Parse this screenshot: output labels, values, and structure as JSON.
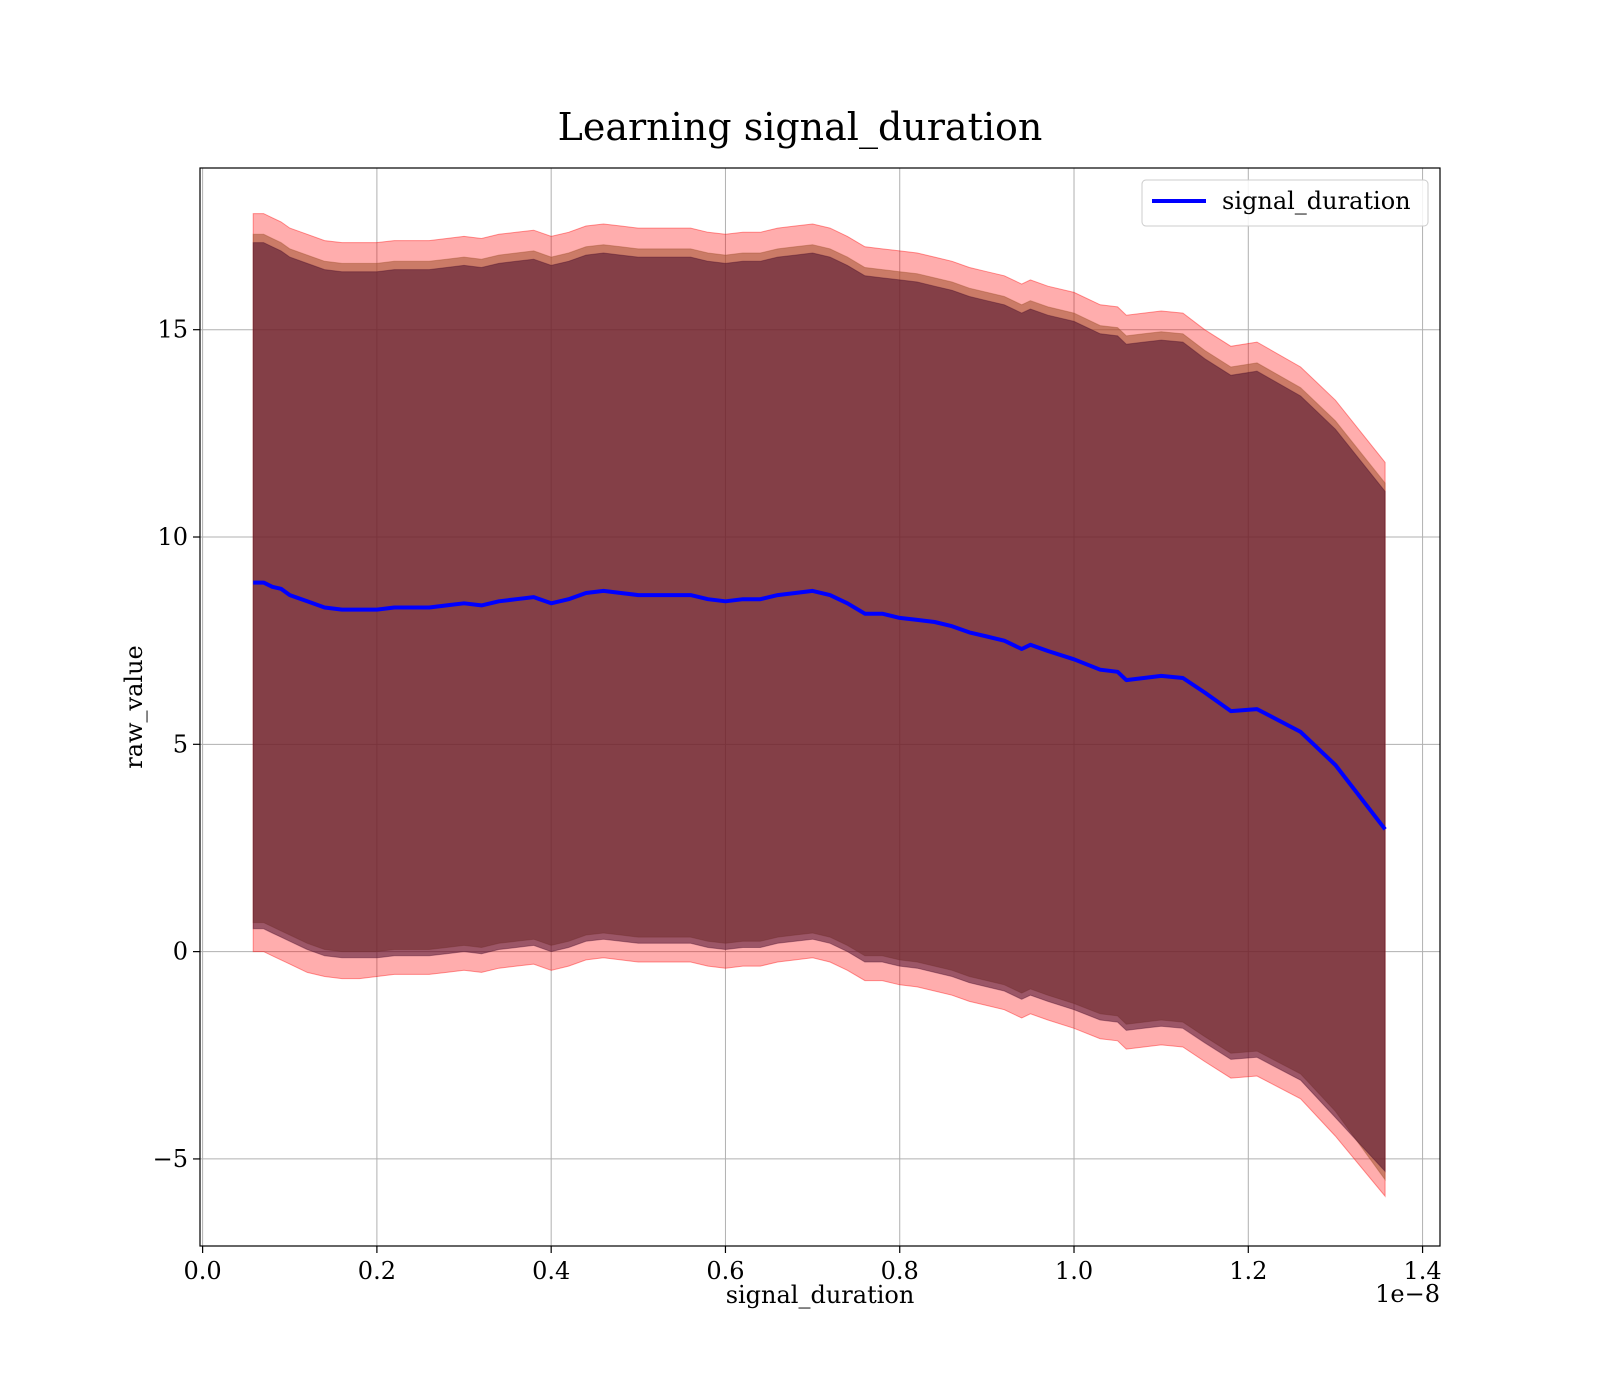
{
  "chart_data": {
    "type": "line",
    "title": "Learning signal_duration",
    "xlabel": "signal_duration",
    "ylabel": "raw_value",
    "x_offset_text": "1e−8",
    "xlim": [
      -3e-11,
      1.42e-08
    ],
    "ylim": [
      -7.1,
      18.9
    ],
    "x_ticks": [
      0.0,
      2e-09,
      4e-09,
      6e-09,
      8e-09,
      1e-08,
      1.2e-08,
      1.4e-08
    ],
    "x_tick_labels": [
      "0.0",
      "0.2",
      "0.4",
      "0.6",
      "0.8",
      "1.0",
      "1.2",
      "1.4"
    ],
    "y_ticks": [
      -5,
      0,
      5,
      10,
      15
    ],
    "y_tick_labels": [
      "−5",
      "0",
      "5",
      "10",
      "15"
    ],
    "grid": true,
    "legend": {
      "placement": "upper-right",
      "entries": [
        "signal_duration"
      ]
    },
    "colors": {
      "line": "#0000ff",
      "band_outer": "#ff0000",
      "band_middle": "#a0522d",
      "band_inner": "#4b0f2e",
      "grid": "#b0b0b0"
    },
    "x": [
      5.8e-10,
      7e-10,
      8e-10,
      9e-10,
      1e-09,
      1.2e-09,
      1.4e-09,
      1.6e-09,
      1.8e-09,
      2e-09,
      2.2e-09,
      2.4e-09,
      2.6e-09,
      2.8e-09,
      3e-09,
      3.2e-09,
      3.4e-09,
      3.6e-09,
      3.8e-09,
      4e-09,
      4.2e-09,
      4.4e-09,
      4.6e-09,
      4.8e-09,
      5e-09,
      5.2e-09,
      5.4e-09,
      5.6e-09,
      5.8e-09,
      6e-09,
      6.2e-09,
      6.4e-09,
      6.6e-09,
      6.8e-09,
      7e-09,
      7.2e-09,
      7.4e-09,
      7.6e-09,
      7.8e-09,
      8e-09,
      8.2e-09,
      8.4e-09,
      8.6e-09,
      8.8e-09,
      9e-09,
      9.2e-09,
      9.4e-09,
      9.5e-09,
      9.7e-09,
      1e-08,
      1.03e-08,
      1.05e-08,
      1.06e-08,
      1.08e-08,
      1.1e-08,
      1.125e-08,
      1.15e-08,
      1.18e-08,
      1.21e-08,
      1.26e-08,
      1.3e-08,
      1.357e-08
    ],
    "series": [
      {
        "name": "signal_duration",
        "values": [
          8.9,
          8.9,
          8.8,
          8.75,
          8.6,
          8.45,
          8.3,
          8.25,
          8.25,
          8.25,
          8.3,
          8.3,
          8.3,
          8.35,
          8.4,
          8.35,
          8.45,
          8.5,
          8.55,
          8.4,
          8.5,
          8.65,
          8.7,
          8.65,
          8.6,
          8.6,
          8.6,
          8.6,
          8.5,
          8.45,
          8.5,
          8.5,
          8.6,
          8.65,
          8.7,
          8.6,
          8.4,
          8.15,
          8.15,
          8.05,
          8.0,
          7.95,
          7.85,
          7.7,
          7.6,
          7.5,
          7.3,
          7.4,
          7.25,
          7.05,
          6.8,
          6.75,
          6.55,
          6.6,
          6.65,
          6.6,
          6.25,
          5.8,
          5.85,
          5.3,
          4.5,
          2.95
        ]
      }
    ],
    "bands": [
      {
        "role": "outer",
        "lower": [
          0.0,
          0.0,
          -0.1,
          -0.2,
          -0.3,
          -0.5,
          -0.6,
          -0.65,
          -0.65,
          -0.6,
          -0.55,
          -0.55,
          -0.55,
          -0.5,
          -0.45,
          -0.5,
          -0.4,
          -0.35,
          -0.3,
          -0.45,
          -0.35,
          -0.2,
          -0.15,
          -0.2,
          -0.25,
          -0.25,
          -0.25,
          -0.25,
          -0.35,
          -0.4,
          -0.35,
          -0.35,
          -0.25,
          -0.2,
          -0.15,
          -0.25,
          -0.45,
          -0.7,
          -0.7,
          -0.8,
          -0.85,
          -0.95,
          -1.05,
          -1.2,
          -1.3,
          -1.4,
          -1.6,
          -1.5,
          -1.65,
          -1.85,
          -2.1,
          -2.15,
          -2.35,
          -2.3,
          -2.25,
          -2.3,
          -2.65,
          -3.05,
          -3.0,
          -3.55,
          -4.45,
          -5.9
        ],
        "upper": [
          17.8,
          17.8,
          17.7,
          17.6,
          17.45,
          17.3,
          17.15,
          17.1,
          17.1,
          17.1,
          17.15,
          17.15,
          17.15,
          17.2,
          17.25,
          17.2,
          17.3,
          17.35,
          17.4,
          17.25,
          17.35,
          17.5,
          17.55,
          17.5,
          17.45,
          17.45,
          17.45,
          17.45,
          17.35,
          17.3,
          17.35,
          17.35,
          17.45,
          17.5,
          17.55,
          17.45,
          17.25,
          17.0,
          16.95,
          16.9,
          16.85,
          16.75,
          16.65,
          16.5,
          16.4,
          16.3,
          16.1,
          16.2,
          16.05,
          15.9,
          15.6,
          15.55,
          15.35,
          15.4,
          15.45,
          15.4,
          15.0,
          14.6,
          14.7,
          14.1,
          13.3,
          11.8
        ]
      },
      {
        "role": "middle",
        "lower": [
          0.7,
          0.7,
          0.6,
          0.5,
          0.4,
          0.2,
          0.05,
          0.0,
          0.0,
          0.0,
          0.05,
          0.05,
          0.05,
          0.1,
          0.15,
          0.1,
          0.2,
          0.25,
          0.3,
          0.15,
          0.25,
          0.4,
          0.45,
          0.4,
          0.35,
          0.35,
          0.35,
          0.35,
          0.25,
          0.2,
          0.25,
          0.25,
          0.35,
          0.4,
          0.45,
          0.35,
          0.15,
          -0.1,
          -0.1,
          -0.2,
          -0.25,
          -0.35,
          -0.45,
          -0.6,
          -0.7,
          -0.8,
          -1.0,
          -0.9,
          -1.05,
          -1.25,
          -1.5,
          -1.55,
          -1.75,
          -1.7,
          -1.65,
          -1.7,
          -2.05,
          -2.45,
          -2.4,
          -2.95,
          -3.85,
          -5.5
        ],
        "upper": [
          17.3,
          17.3,
          17.2,
          17.1,
          16.95,
          16.8,
          16.65,
          16.6,
          16.6,
          16.6,
          16.65,
          16.65,
          16.65,
          16.7,
          16.75,
          16.7,
          16.8,
          16.85,
          16.9,
          16.75,
          16.85,
          17.0,
          17.05,
          17.0,
          16.95,
          16.95,
          16.95,
          16.95,
          16.85,
          16.8,
          16.85,
          16.85,
          16.95,
          17.0,
          17.05,
          16.95,
          16.75,
          16.5,
          16.45,
          16.4,
          16.35,
          16.25,
          16.15,
          16.0,
          15.9,
          15.8,
          15.6,
          15.7,
          15.55,
          15.4,
          15.1,
          15.05,
          14.85,
          14.9,
          14.95,
          14.9,
          14.5,
          14.1,
          14.2,
          13.6,
          12.8,
          11.3
        ]
      },
      {
        "role": "inner",
        "lower": [
          0.55,
          0.55,
          0.45,
          0.35,
          0.25,
          0.05,
          -0.1,
          -0.15,
          -0.15,
          -0.15,
          -0.1,
          -0.1,
          -0.1,
          -0.05,
          0.0,
          -0.05,
          0.05,
          0.1,
          0.15,
          0.0,
          0.1,
          0.25,
          0.3,
          0.25,
          0.2,
          0.2,
          0.2,
          0.2,
          0.1,
          0.05,
          0.1,
          0.1,
          0.2,
          0.25,
          0.3,
          0.2,
          0.0,
          -0.25,
          -0.25,
          -0.35,
          -0.4,
          -0.5,
          -0.6,
          -0.75,
          -0.85,
          -0.95,
          -1.15,
          -1.05,
          -1.2,
          -1.4,
          -1.65,
          -1.7,
          -1.9,
          -1.85,
          -1.8,
          -1.85,
          -2.2,
          -2.6,
          -2.55,
          -3.1,
          -4.0,
          -5.3
        ],
        "upper": [
          17.1,
          17.1,
          17.0,
          16.9,
          16.75,
          16.6,
          16.45,
          16.4,
          16.4,
          16.4,
          16.45,
          16.45,
          16.45,
          16.5,
          16.55,
          16.5,
          16.6,
          16.65,
          16.7,
          16.55,
          16.65,
          16.8,
          16.85,
          16.8,
          16.75,
          16.75,
          16.75,
          16.75,
          16.65,
          16.6,
          16.65,
          16.65,
          16.75,
          16.8,
          16.85,
          16.75,
          16.55,
          16.3,
          16.25,
          16.2,
          16.15,
          16.05,
          15.95,
          15.8,
          15.7,
          15.6,
          15.4,
          15.5,
          15.35,
          15.2,
          14.9,
          14.85,
          14.65,
          14.7,
          14.75,
          14.7,
          14.3,
          13.9,
          14.0,
          13.4,
          12.6,
          11.1
        ]
      }
    ]
  }
}
